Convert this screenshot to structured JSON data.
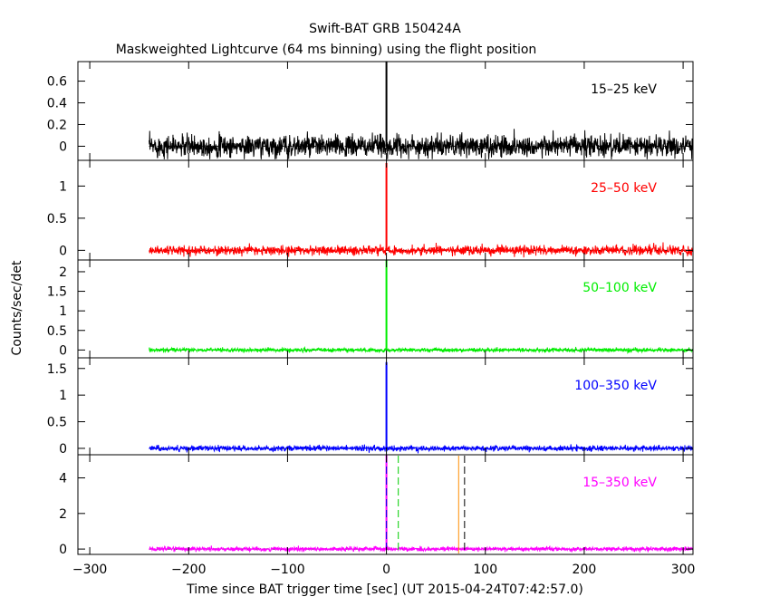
{
  "chart_data": {
    "type": "line",
    "title": "Swift-BAT GRB 150424A",
    "subtitle": "Maskweighted Lightcurve (64 ms binning) using the flight position",
    "xlabel": "Time since BAT trigger time [sec] (UT 2015-04-24T07:42:57.0)",
    "ylabel": "Counts/sec/det",
    "xlim": [
      -312,
      310
    ],
    "x_ticks": [
      -300,
      -200,
      -100,
      0,
      100,
      200,
      300
    ],
    "x_tick_labels": [
      "−300",
      "−200",
      "−100",
      "0",
      "100",
      "200",
      "300"
    ],
    "data_start": -240,
    "data_end": 310,
    "peak_time": 0,
    "panels": [
      {
        "name": "15–25 keV",
        "color": "#000000",
        "ylim": [
          -0.13,
          0.78
        ],
        "yticks": [
          0,
          0.2,
          0.4,
          0.6
        ],
        "ytick_labels": [
          "0",
          "0.2",
          "0.4",
          "0.6"
        ],
        "noise": 0.05,
        "peak": 0.78
      },
      {
        "name": "25–50 keV",
        "color": "#ff0000",
        "ylim": [
          -0.15,
          1.4
        ],
        "yticks": [
          0,
          0.5,
          1
        ],
        "ytick_labels": [
          "0",
          "0.5",
          "1"
        ],
        "noise": 0.035,
        "peak": 1.36
      },
      {
        "name": "50–100 keV",
        "color": "#00ee00",
        "ylim": [
          -0.2,
          2.3
        ],
        "yticks": [
          0,
          0.5,
          1,
          1.5,
          2
        ],
        "ytick_labels": [
          "0",
          "0.5",
          "1",
          "1.5",
          "2"
        ],
        "noise": 0.025,
        "peak": 2.3
      },
      {
        "name": "100–350 keV",
        "color": "#0000ff",
        "ylim": [
          -0.12,
          1.7
        ],
        "yticks": [
          0,
          0.5,
          1,
          1.5
        ],
        "ytick_labels": [
          "0",
          "0.5",
          "1",
          "1.5"
        ],
        "noise": 0.025,
        "peak": 1.62
      },
      {
        "name": "15–350 keV",
        "color": "#ff00ff",
        "ylim": [
          -0.3,
          5.3
        ],
        "yticks": [
          0,
          2,
          4
        ],
        "ytick_labels": [
          "0",
          "2",
          "4"
        ],
        "noise": 0.06,
        "peak": 5.3,
        "markers": [
          {
            "x": 0,
            "color": "#ff0000",
            "style": "dashed"
          },
          {
            "x": 0,
            "color": "#0000ff",
            "style": "dashed"
          },
          {
            "x": 12,
            "color": "#00cc00",
            "style": "dashed"
          },
          {
            "x": 73,
            "color": "#ff8c00",
            "style": "solid"
          },
          {
            "x": 79,
            "color": "#000000",
            "style": "dashed"
          }
        ]
      }
    ]
  }
}
